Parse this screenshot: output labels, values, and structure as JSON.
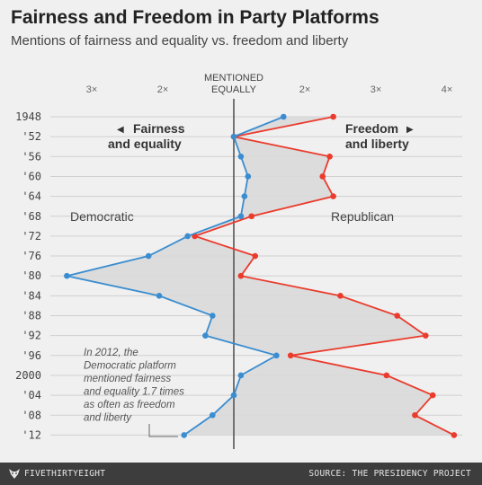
{
  "header": {
    "title": "Fairness and Freedom in Party Platforms",
    "subtitle": "Mentions of fairness and equality vs. freedom and liberty"
  },
  "footer": {
    "brand": "FIVETHIRTYEIGHT",
    "brand_icon": "fivethirtyeight-fox-icon",
    "source": "SOURCE: THE PRESIDENCY PROJECT"
  },
  "colors": {
    "democratic": "#3a8dd0",
    "republican": "#ea3b2c",
    "fill": "#d9d9d9",
    "axis": "#555555"
  },
  "chart_data": {
    "type": "line",
    "orientation": "vertical-years",
    "center_label": [
      "MENTIONED",
      "EQUALLY"
    ],
    "x_ticks": [
      {
        "value": -3,
        "label": "3×"
      },
      {
        "value": -2,
        "label": "2×"
      },
      {
        "value": 2,
        "label": "2×"
      },
      {
        "value": 3,
        "label": "3×"
      },
      {
        "value": 4,
        "label": "4×"
      }
    ],
    "x_range": [
      -4,
      4.2
    ],
    "years": [
      1948,
      1952,
      1956,
      1960,
      1964,
      1968,
      1972,
      1976,
      1980,
      1984,
      1988,
      1992,
      1996,
      2000,
      2004,
      2008,
      2012
    ],
    "year_labels": [
      "1948",
      "'52",
      "'56",
      "'60",
      "'64",
      "'68",
      "'72",
      "'76",
      "'80",
      "'84",
      "'88",
      "'92",
      "'96",
      "2000",
      "'04",
      "'08",
      "'12"
    ],
    "series": [
      {
        "key": "democratic",
        "name": "Democratic",
        "values": [
          1.7,
          1.0,
          1.1,
          1.2,
          1.15,
          1.1,
          -1.65,
          -2.2,
          -3.35,
          -2.05,
          -1.3,
          -1.4,
          1.6,
          1.1,
          1.0,
          -1.3,
          -1.7
        ]
      },
      {
        "key": "republican",
        "name": "Republican",
        "values": [
          2.4,
          1.0,
          2.35,
          2.25,
          2.4,
          1.25,
          -1.55,
          1.3,
          1.1,
          2.5,
          3.3,
          3.7,
          1.8,
          3.15,
          3.8,
          3.55,
          4.1
        ]
      }
    ],
    "annotations": {
      "left_label": [
        "Fairness",
        "and equality"
      ],
      "right_label": [
        "Freedom",
        "and liberty"
      ],
      "note": [
        "In 2012, the",
        "Democratic platform",
        "mentioned fairness",
        "and equality 1.7 times",
        "as often as freedom",
        "and liberty"
      ]
    }
  }
}
